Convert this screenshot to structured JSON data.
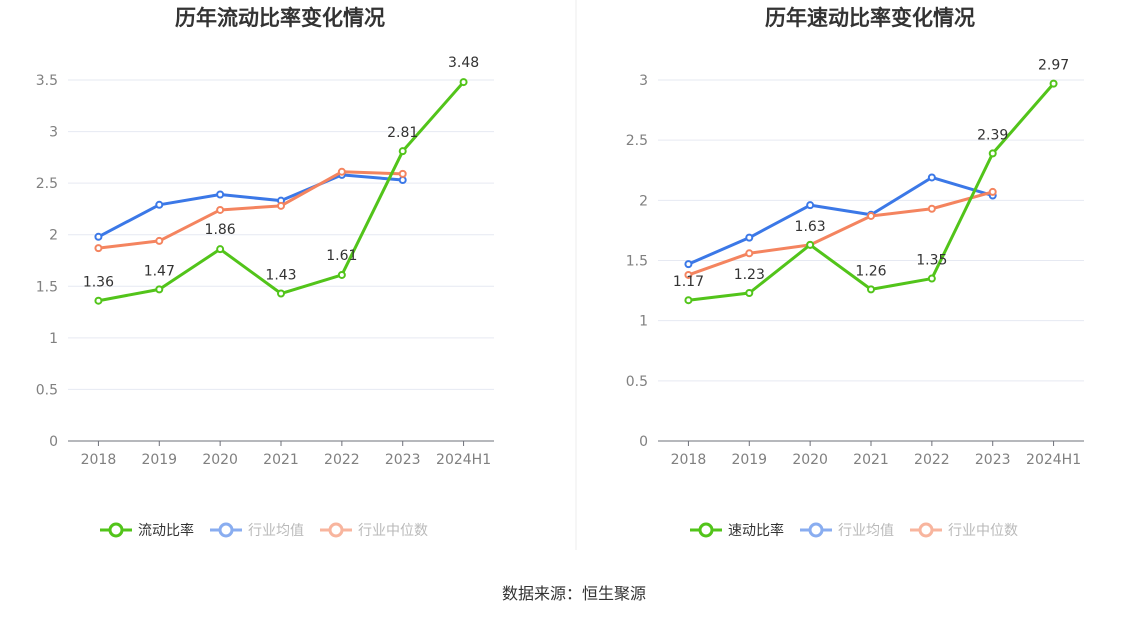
{
  "source": "数据来源：恒生聚源",
  "chart_data": [
    {
      "type": "line",
      "title": "历年流动比率变化情况",
      "categories": [
        "2018",
        "2019",
        "2020",
        "2021",
        "2022",
        "2023",
        "2024H1"
      ],
      "ylim": [
        0,
        3.5
      ],
      "yticks": [
        "0",
        "0.5",
        "1",
        "1.5",
        "2",
        "2.5",
        "3",
        "3.5"
      ],
      "grid": true,
      "legend_position": "bottom",
      "series": [
        {
          "name": "流动比率",
          "color": "#52c41a",
          "values": [
            1.36,
            1.47,
            1.86,
            1.43,
            1.61,
            2.81,
            3.48
          ],
          "labels": [
            "1.36",
            "1.47",
            "1.86",
            "1.43",
            "1.61",
            "2.81",
            "3.48"
          ],
          "legend_active": true
        },
        {
          "name": "行业均值",
          "color": "#3b78e7",
          "values": [
            1.98,
            2.29,
            2.39,
            2.33,
            2.58,
            2.53,
            null
          ],
          "legend_active": false
        },
        {
          "name": "行业中位数",
          "color": "#f4845f",
          "values": [
            1.87,
            1.94,
            2.24,
            2.28,
            2.61,
            2.59,
            null
          ],
          "legend_active": false
        }
      ]
    },
    {
      "type": "line",
      "title": "历年速动比率变化情况",
      "categories": [
        "2018",
        "2019",
        "2020",
        "2021",
        "2022",
        "2023",
        "2024H1"
      ],
      "ylim": [
        0,
        3
      ],
      "yticks": [
        "0",
        "0.5",
        "1",
        "1.5",
        "2",
        "2.5",
        "3"
      ],
      "grid": true,
      "legend_position": "bottom",
      "series": [
        {
          "name": "速动比率",
          "color": "#52c41a",
          "values": [
            1.17,
            1.23,
            1.63,
            1.26,
            1.35,
            2.39,
            2.97
          ],
          "labels": [
            "1.17",
            "1.23",
            "1.63",
            "1.26",
            "1.35",
            "2.39",
            "2.97"
          ],
          "legend_active": true
        },
        {
          "name": "行业均值",
          "color": "#3b78e7",
          "values": [
            1.47,
            1.69,
            1.96,
            1.88,
            2.19,
            2.04,
            null
          ],
          "legend_active": false
        },
        {
          "name": "行业中位数",
          "color": "#f4845f",
          "values": [
            1.38,
            1.56,
            1.63,
            1.87,
            1.93,
            2.07,
            null
          ],
          "legend_active": false
        }
      ]
    }
  ]
}
